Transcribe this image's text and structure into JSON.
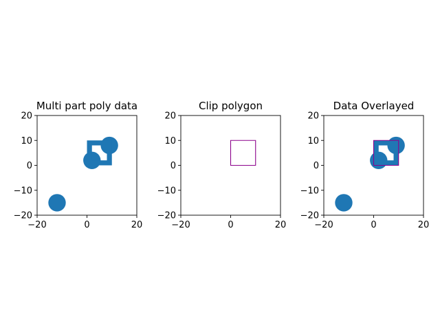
{
  "chart_data": [
    {
      "type": "geometry",
      "title": "Multi part poly data",
      "xlim": [
        -20,
        20
      ],
      "ylim": [
        -20,
        20
      ],
      "xticks": [
        -20,
        0,
        20
      ],
      "yticks": [
        -20,
        -10,
        0,
        10,
        20
      ],
      "fill_color": "#1f77b4",
      "shapes": [
        {
          "kind": "circle",
          "center": [
            -12,
            -15
          ],
          "radius": 3.5
        },
        {
          "kind": "circle",
          "center": [
            2,
            2
          ],
          "radius": 3.5
        },
        {
          "kind": "circle",
          "center": [
            9,
            8
          ],
          "radius": 3.5
        },
        {
          "kind": "square_with_hole",
          "outer": [
            [
              0,
              0
            ],
            [
              10,
              0
            ],
            [
              10,
              10
            ],
            [
              0,
              10
            ]
          ],
          "hole": [
            [
              2,
              2
            ],
            [
              8,
              2
            ],
            [
              8,
              8
            ],
            [
              2,
              8
            ]
          ]
        }
      ]
    },
    {
      "type": "geometry",
      "title": "Clip polygon",
      "xlim": [
        -20,
        20
      ],
      "ylim": [
        -20,
        20
      ],
      "xticks": [
        -20,
        0,
        20
      ],
      "yticks": [
        -20,
        -10,
        0,
        10,
        20
      ],
      "outline_color": "#8b008b",
      "shapes": [
        {
          "kind": "outline",
          "points": [
            [
              0,
              0
            ],
            [
              10,
              0
            ],
            [
              10,
              10
            ],
            [
              0,
              10
            ]
          ]
        }
      ]
    },
    {
      "type": "geometry",
      "title": "Data Overlayed",
      "xlim": [
        -20,
        20
      ],
      "ylim": [
        -20,
        20
      ],
      "xticks": [
        -20,
        0,
        20
      ],
      "yticks": [
        -20,
        -10,
        0,
        10,
        20
      ],
      "fill_color": "#1f77b4",
      "outline_color": "#8b008b",
      "shapes": [
        {
          "kind": "circle",
          "center": [
            -12,
            -15
          ],
          "radius": 3.5
        },
        {
          "kind": "circle",
          "center": [
            2,
            2
          ],
          "radius": 3.5
        },
        {
          "kind": "circle",
          "center": [
            9,
            8
          ],
          "radius": 3.5
        },
        {
          "kind": "square_with_hole",
          "outer": [
            [
              0,
              0
            ],
            [
              10,
              0
            ],
            [
              10,
              10
            ],
            [
              0,
              10
            ]
          ],
          "hole": [
            [
              2,
              2
            ],
            [
              8,
              2
            ],
            [
              8,
              8
            ],
            [
              2,
              8
            ]
          ]
        },
        {
          "kind": "outline",
          "points": [
            [
              0,
              0
            ],
            [
              10,
              0
            ],
            [
              10,
              10
            ],
            [
              0,
              10
            ]
          ]
        }
      ]
    }
  ]
}
